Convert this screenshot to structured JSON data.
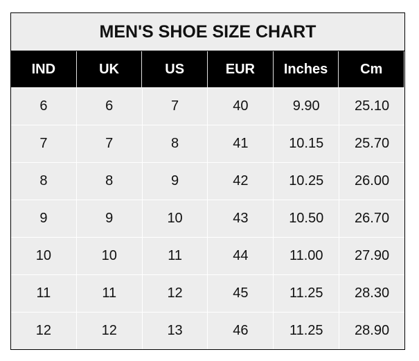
{
  "title": "MEN'S SHOE SIZE CHART",
  "columns": [
    "IND",
    "UK",
    "US",
    "EUR",
    "Inches",
    "Cm"
  ],
  "rows": [
    [
      "6",
      "6",
      "7",
      "40",
      "9.90",
      "25.10"
    ],
    [
      "7",
      "7",
      "8",
      "41",
      "10.15",
      "25.70"
    ],
    [
      "8",
      "8",
      "9",
      "42",
      "10.25",
      "26.00"
    ],
    [
      "9",
      "9",
      "10",
      "43",
      "10.50",
      "26.70"
    ],
    [
      "10",
      "10",
      "11",
      "44",
      "11.00",
      "27.90"
    ],
    [
      "11",
      "11",
      "12",
      "45",
      "11.25",
      "28.30"
    ],
    [
      "12",
      "12",
      "13",
      "46",
      "11.25",
      "28.90"
    ]
  ],
  "colors": {
    "header_bg": "#000000",
    "cell_bg": "#ededed",
    "border": "#000000"
  }
}
